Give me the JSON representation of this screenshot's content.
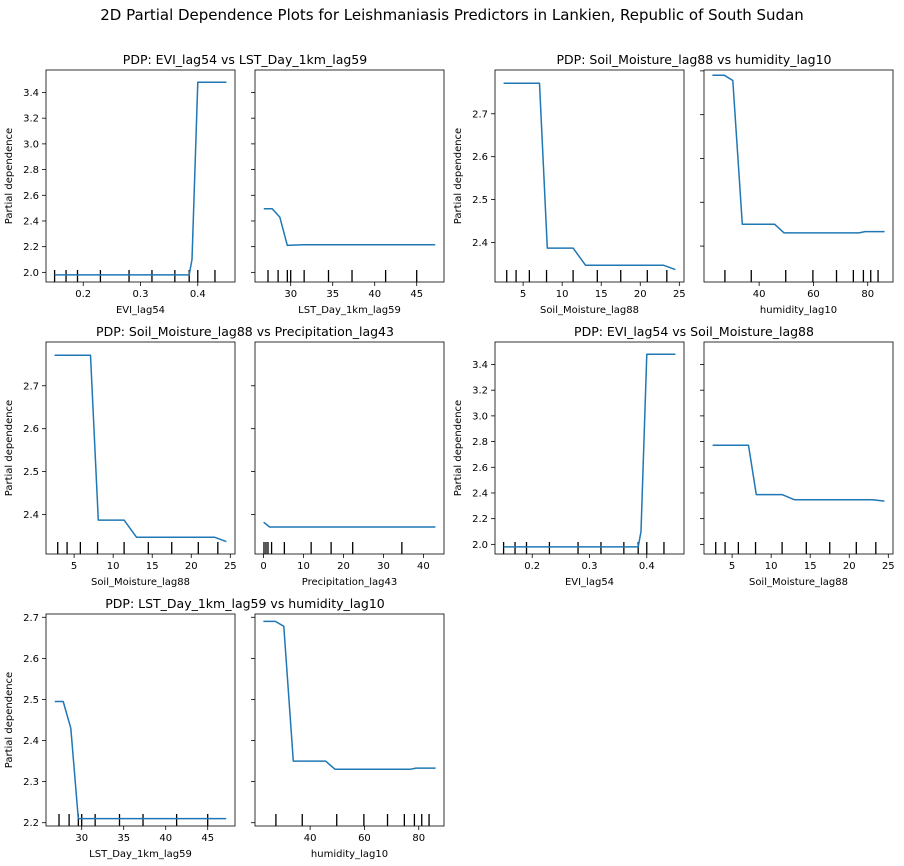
{
  "figure": {
    "title": "2D Partial Dependence Plots for Leishmaniasis Predictors in Lankien, Republic of South Sudan"
  },
  "colors": {
    "line": "#1f77b4",
    "axis": "#000000",
    "background": "#ffffff"
  },
  "chart_data": [
    {
      "type": "line",
      "group_title": "PDP: EVI_lag54 vs LST_Day_1km_lag59",
      "xlabel": "EVI_lag54",
      "ylabel": "Partial dependence",
      "xlim": [
        0.135,
        0.465
      ],
      "ylim": [
        1.925,
        3.575
      ],
      "xticks": [
        0.2,
        0.3,
        0.4
      ],
      "xtick_labels": [
        "0.2",
        "0.3",
        "0.4"
      ],
      "yticks": [
        2.0,
        2.2,
        2.4,
        2.6,
        2.8,
        3.0,
        3.2,
        3.4
      ],
      "ytick_labels": [
        "2.0",
        "2.2",
        "2.4",
        "2.6",
        "2.8",
        "3.0",
        "3.2",
        "3.4"
      ],
      "show_y_tick_labels": true,
      "x": [
        0.15,
        0.385,
        0.39,
        0.4,
        0.45
      ],
      "y": [
        1.98,
        1.98,
        2.1,
        3.48,
        3.48
      ],
      "rug": [
        0.15,
        0.17,
        0.19,
        0.23,
        0.28,
        0.32,
        0.36,
        0.385,
        0.4,
        0.43
      ]
    },
    {
      "type": "line",
      "xlabel": "LST_Day_1km_lag59",
      "ylabel": "",
      "xlim": [
        25.75,
        48.25
      ],
      "ylim": [
        1.925,
        3.575
      ],
      "xticks": [
        30,
        35,
        40,
        45
      ],
      "xtick_labels": [
        "30",
        "35",
        "40",
        "45"
      ],
      "yticks": [
        2.0,
        2.2,
        2.4,
        2.6,
        2.8,
        3.0,
        3.2,
        3.4
      ],
      "ytick_labels": [
        "",
        "",
        "",
        "",
        "",
        "",
        "",
        ""
      ],
      "show_y_tick_labels": false,
      "x": [
        26.8,
        27.8,
        28.7,
        29.6,
        31.5,
        47.2
      ],
      "y": [
        2.495,
        2.495,
        2.43,
        2.21,
        2.215,
        2.215
      ],
      "rug": [
        27.3,
        28.5,
        29.6,
        30.0,
        31.6,
        34.5,
        37.3,
        41.3,
        45.0
      ]
    },
    {
      "type": "line",
      "group_title": "PDP: Soil_Moisture_lag88 vs humidity_lag10",
      "xlabel": "Soil_Moisture_lag88",
      "ylabel": "Partial dependence",
      "xlim": [
        1.4,
        25.6
      ],
      "ylim": [
        2.308,
        2.802
      ],
      "xticks": [
        5,
        10,
        15,
        20,
        25
      ],
      "xtick_labels": [
        "5",
        "10",
        "15",
        "20",
        "25"
      ],
      "yticks": [
        2.4,
        2.5,
        2.6,
        2.7
      ],
      "ytick_labels": [
        "2.4",
        "2.5",
        "2.6",
        "2.7"
      ],
      "show_y_tick_labels": true,
      "x": [
        2.5,
        7.1,
        8.1,
        11.4,
        13.0,
        23.0,
        24.5
      ],
      "y": [
        2.771,
        2.771,
        2.387,
        2.387,
        2.347,
        2.347,
        2.337
      ],
      "rug": [
        2.9,
        4.1,
        5.8,
        8.0,
        11.4,
        14.5,
        17.5,
        20.9,
        23.4
      ]
    },
    {
      "type": "line",
      "xlabel": "humidity_lag10",
      "ylabel": "",
      "xlim": [
        19.7,
        89.3
      ],
      "ylim": [
        2.218,
        2.702
      ],
      "xticks": [
        40,
        60,
        80
      ],
      "xtick_labels": [
        "40",
        "60",
        "80"
      ],
      "yticks": [
        2.3,
        2.4,
        2.5,
        2.6,
        2.7
      ],
      "ytick_labels": [
        "",
        "",
        "",
        "",
        ""
      ],
      "show_y_tick_labels": false,
      "x": [
        22.8,
        27.2,
        30.3,
        33.8,
        45.7,
        49.2,
        76.8,
        79.0,
        86.2
      ],
      "y": [
        2.69,
        2.69,
        2.678,
        2.35,
        2.35,
        2.33,
        2.33,
        2.333,
        2.333
      ],
      "rug": [
        27.4,
        37.1,
        49.8,
        59.8,
        68.5,
        74.7,
        78.4,
        81.1,
        83.8
      ]
    },
    {
      "type": "line",
      "group_title": "PDP: Soil_Moisture_lag88 vs Precipitation_lag43",
      "xlabel": "Soil_Moisture_lag88",
      "ylabel": "Partial dependence",
      "xlim": [
        1.4,
        25.6
      ],
      "ylim": [
        2.308,
        2.802
      ],
      "xticks": [
        5,
        10,
        15,
        20,
        25
      ],
      "xtick_labels": [
        "5",
        "10",
        "15",
        "20",
        "25"
      ],
      "yticks": [
        2.4,
        2.5,
        2.6,
        2.7
      ],
      "ytick_labels": [
        "2.4",
        "2.5",
        "2.6",
        "2.7"
      ],
      "show_y_tick_labels": true,
      "x": [
        2.5,
        7.1,
        8.1,
        11.4,
        13.0,
        23.0,
        24.5
      ],
      "y": [
        2.771,
        2.771,
        2.387,
        2.387,
        2.347,
        2.347,
        2.337
      ],
      "rug": [
        2.9,
        4.1,
        5.8,
        8.0,
        11.4,
        14.5,
        17.5,
        20.9,
        23.4
      ]
    },
    {
      "type": "line",
      "xlabel": "Precipitation_lag43",
      "ylabel": "",
      "xlim": [
        -2.15,
        45.15
      ],
      "ylim": [
        2.308,
        2.802
      ],
      "xticks": [
        0,
        10,
        20,
        30,
        40
      ],
      "xtick_labels": [
        "0",
        "10",
        "20",
        "30",
        "40"
      ],
      "yticks": [
        2.4,
        2.5,
        2.6,
        2.7
      ],
      "ytick_labels": [
        "",
        "",
        "",
        ""
      ],
      "show_y_tick_labels": false,
      "x": [
        0.0,
        1.5,
        43.0
      ],
      "y": [
        2.382,
        2.371,
        2.371
      ],
      "rug": [
        0.1,
        0.6,
        1.1,
        2.0,
        5.2,
        11.9,
        16.9,
        22.3,
        34.6
      ]
    },
    {
      "type": "line",
      "group_title": "PDP: EVI_lag54 vs Soil_Moisture_lag88",
      "xlabel": "EVI_lag54",
      "ylabel": "Partial dependence",
      "xlim": [
        0.135,
        0.465
      ],
      "ylim": [
        1.925,
        3.575
      ],
      "xticks": [
        0.2,
        0.3,
        0.4
      ],
      "xtick_labels": [
        "0.2",
        "0.3",
        "0.4"
      ],
      "yticks": [
        2.0,
        2.2,
        2.4,
        2.6,
        2.8,
        3.0,
        3.2,
        3.4
      ],
      "ytick_labels": [
        "2.0",
        "2.2",
        "2.4",
        "2.6",
        "2.8",
        "3.0",
        "3.2",
        "3.4"
      ],
      "show_y_tick_labels": true,
      "x": [
        0.15,
        0.385,
        0.39,
        0.4,
        0.45
      ],
      "y": [
        1.98,
        1.98,
        2.1,
        3.48,
        3.48
      ],
      "rug": [
        0.15,
        0.17,
        0.19,
        0.23,
        0.28,
        0.32,
        0.36,
        0.385,
        0.4,
        0.43
      ]
    },
    {
      "type": "line",
      "xlabel": "Soil_Moisture_lag88",
      "ylabel": "",
      "xlim": [
        1.4,
        25.6
      ],
      "ylim": [
        1.925,
        3.575
      ],
      "xticks": [
        5,
        10,
        15,
        20,
        25
      ],
      "xtick_labels": [
        "5",
        "10",
        "15",
        "20",
        "25"
      ],
      "yticks": [
        2.0,
        2.2,
        2.4,
        2.6,
        2.8,
        3.0,
        3.2,
        3.4
      ],
      "ytick_labels": [
        "",
        "",
        "",
        "",
        "",
        "",
        "",
        ""
      ],
      "show_y_tick_labels": false,
      "x": [
        2.5,
        7.1,
        8.1,
        11.4,
        13.0,
        23.0,
        24.5
      ],
      "y": [
        2.771,
        2.771,
        2.387,
        2.387,
        2.347,
        2.347,
        2.337
      ],
      "rug": [
        2.9,
        4.1,
        5.8,
        8.0,
        11.4,
        14.5,
        17.5,
        20.9,
        23.4
      ]
    },
    {
      "type": "line",
      "group_title": "PDP: LST_Day_1km_lag59 vs humidity_lag10",
      "xlabel": "LST_Day_1km_lag59",
      "ylabel": "Partial dependence",
      "xlim": [
        25.75,
        48.25
      ],
      "ylim": [
        2.192,
        2.708
      ],
      "xticks": [
        30,
        35,
        40,
        45
      ],
      "xtick_labels": [
        "30",
        "35",
        "40",
        "45"
      ],
      "yticks": [
        2.2,
        2.3,
        2.4,
        2.5,
        2.6,
        2.7
      ],
      "ytick_labels": [
        "2.2",
        "2.3",
        "2.4",
        "2.5",
        "2.6",
        "2.7"
      ],
      "show_y_tick_labels": true,
      "x": [
        26.8,
        27.8,
        28.7,
        29.6,
        31.5,
        47.2
      ],
      "y": [
        2.495,
        2.495,
        2.43,
        2.21,
        2.21,
        2.21
      ],
      "rug": [
        27.3,
        28.5,
        29.6,
        30.0,
        31.6,
        34.5,
        37.3,
        41.3,
        45.0
      ]
    },
    {
      "type": "line",
      "xlabel": "humidity_lag10",
      "ylabel": "",
      "xlim": [
        19.7,
        89.3
      ],
      "ylim": [
        2.192,
        2.708
      ],
      "xticks": [
        40,
        60,
        80
      ],
      "xtick_labels": [
        "40",
        "60",
        "80"
      ],
      "yticks": [
        2.2,
        2.3,
        2.4,
        2.5,
        2.6,
        2.7
      ],
      "ytick_labels": [
        "",
        "",
        "",
        "",
        "",
        ""
      ],
      "show_y_tick_labels": false,
      "x": [
        22.8,
        27.2,
        30.3,
        33.8,
        45.7,
        49.2,
        76.8,
        79.0,
        86.2
      ],
      "y": [
        2.69,
        2.69,
        2.678,
        2.35,
        2.35,
        2.33,
        2.33,
        2.333,
        2.333
      ],
      "rug": [
        27.4,
        37.1,
        49.8,
        59.8,
        68.5,
        74.7,
        78.4,
        81.1,
        83.8
      ]
    }
  ]
}
